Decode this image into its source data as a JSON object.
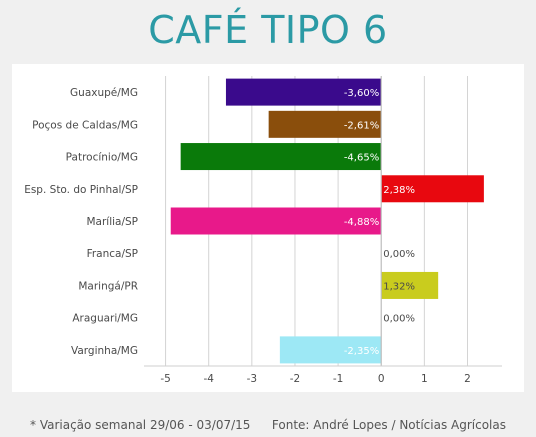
{
  "title": "CAFÉ TIPO 6",
  "footer": {
    "note": "* Variação semanal 29/06 - 03/07/15",
    "source": "Fonte: André Lopes / Notícias Agrícolas"
  },
  "chart_data": {
    "type": "bar",
    "orientation": "horizontal",
    "categories": [
      "Guaxupé/MG",
      "Poços de Caldas/MG",
      "Patrocínio/MG",
      "Esp. Sto. do Pinhal/SP",
      "Marília/SP",
      "Franca/SP",
      "Maringá/PR",
      "Araguari/MG",
      "Varginha/MG"
    ],
    "values": [
      -3.6,
      -2.61,
      -4.65,
      2.38,
      -4.88,
      0.0,
      1.32,
      0.0,
      -2.35
    ],
    "data_labels": [
      "-3,60%",
      "-2,61%",
      "-4,65%",
      "2,38%",
      "-4,88%",
      "0,00%",
      "1,32%",
      "0,00%",
      "-2,35%"
    ],
    "colors": [
      "#3a0a8c",
      "#8a4e0c",
      "#0a7a0a",
      "#e8080f",
      "#e8198a",
      "#ffffff",
      "#c9cc1e",
      "#ffffff",
      "#9de8f5"
    ],
    "xlim": [
      -5.5,
      2.8
    ],
    "xticks": [
      -5,
      -4,
      -3,
      -2,
      -1,
      0,
      1,
      2
    ],
    "xtick_labels": [
      "-5",
      "-4",
      "-3",
      "-2",
      "-1",
      "0",
      "1",
      "2"
    ],
    "grid": true,
    "xlabel": "",
    "ylabel": ""
  }
}
